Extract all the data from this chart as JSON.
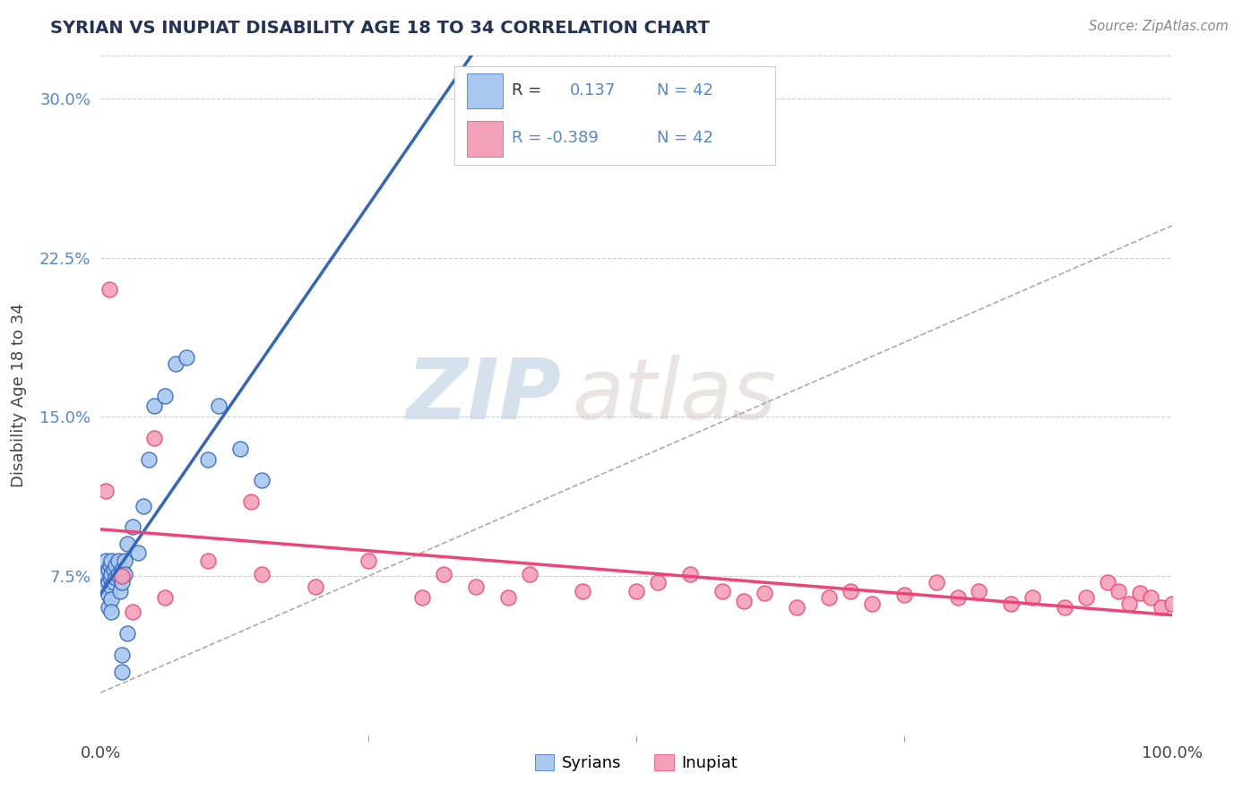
{
  "title": "SYRIAN VS INUPIAT DISABILITY AGE 18 TO 34 CORRELATION CHART",
  "source": "Source: ZipAtlas.com",
  "ylabel": "Disability Age 18 to 34",
  "xlim": [
    0.0,
    1.0
  ],
  "ylim": [
    0.0,
    0.32
  ],
  "xtick_labels": [
    "0.0%",
    "100.0%"
  ],
  "ytick_labels": [
    "7.5%",
    "15.0%",
    "22.5%",
    "30.0%"
  ],
  "ytick_values": [
    0.075,
    0.15,
    0.225,
    0.3
  ],
  "syrian_R": 0.137,
  "syrian_N": 42,
  "inupiat_R": -0.389,
  "inupiat_N": 42,
  "syrian_color": "#a8c8f0",
  "inupiat_color": "#f4a0b8",
  "syrian_line_color": "#3366bb",
  "inupiat_line_color": "#ee4477",
  "background_color": "#ffffff",
  "grid_color": "#cccccc",
  "title_color": "#223355",
  "watermark_zip": "ZIP",
  "watermark_atlas": "atlas",
  "legend_syrian_label": "Syrians",
  "legend_inupiat_label": "Inupiat",
  "syrian_x": [
    0.005,
    0.005,
    0.005,
    0.007,
    0.007,
    0.007,
    0.007,
    0.009,
    0.009,
    0.01,
    0.01,
    0.01,
    0.01,
    0.01,
    0.012,
    0.012,
    0.014,
    0.014,
    0.016,
    0.016,
    0.018,
    0.018,
    0.02,
    0.02,
    0.022,
    0.022,
    0.025,
    0.03,
    0.035,
    0.04,
    0.045,
    0.05,
    0.06,
    0.07,
    0.08,
    0.1,
    0.11,
    0.13,
    0.15,
    0.02,
    0.02,
    0.025
  ],
  "syrian_y": [
    0.082,
    0.076,
    0.07,
    0.078,
    0.072,
    0.066,
    0.06,
    0.08,
    0.074,
    0.082,
    0.076,
    0.07,
    0.064,
    0.058,
    0.078,
    0.072,
    0.08,
    0.074,
    0.082,
    0.076,
    0.074,
    0.068,
    0.078,
    0.072,
    0.082,
    0.076,
    0.09,
    0.098,
    0.086,
    0.108,
    0.13,
    0.155,
    0.16,
    0.175,
    0.178,
    0.13,
    0.155,
    0.135,
    0.12,
    0.038,
    0.03,
    0.048
  ],
  "inupiat_x": [
    0.005,
    0.008,
    0.02,
    0.05,
    0.06,
    0.1,
    0.15,
    0.2,
    0.25,
    0.3,
    0.32,
    0.35,
    0.38,
    0.4,
    0.45,
    0.5,
    0.52,
    0.55,
    0.58,
    0.6,
    0.62,
    0.65,
    0.68,
    0.7,
    0.72,
    0.75,
    0.78,
    0.8,
    0.82,
    0.85,
    0.87,
    0.9,
    0.92,
    0.94,
    0.95,
    0.96,
    0.97,
    0.98,
    0.99,
    1.0,
    0.03,
    0.14
  ],
  "inupiat_y": [
    0.115,
    0.21,
    0.075,
    0.14,
    0.065,
    0.082,
    0.076,
    0.07,
    0.082,
    0.065,
    0.076,
    0.07,
    0.065,
    0.076,
    0.068,
    0.068,
    0.072,
    0.076,
    0.068,
    0.063,
    0.067,
    0.06,
    0.065,
    0.068,
    0.062,
    0.066,
    0.072,
    0.065,
    0.068,
    0.062,
    0.065,
    0.06,
    0.065,
    0.072,
    0.068,
    0.062,
    0.067,
    0.065,
    0.06,
    0.062,
    0.058,
    0.11
  ]
}
